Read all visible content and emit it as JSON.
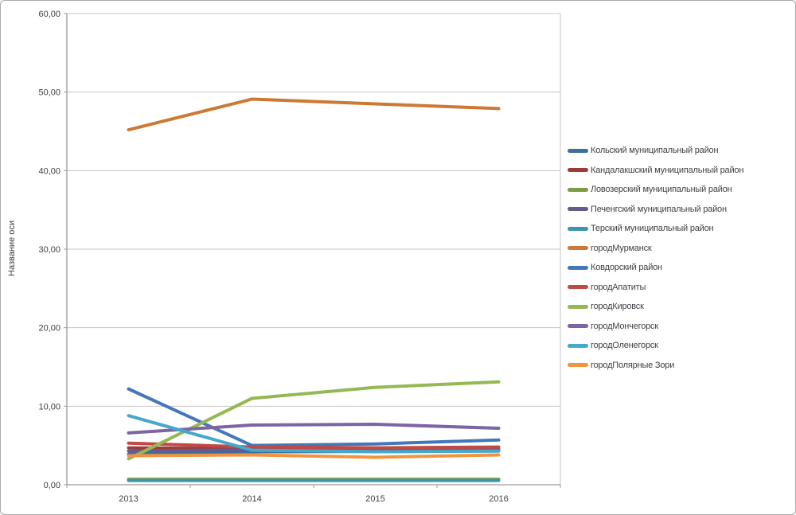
{
  "window": {
    "background_color": "#ffffff",
    "border_color": "#ababab"
  },
  "colors": {
    "gridline": "#c6c6c6",
    "axis": "#9b9b9b",
    "text": "#404040"
  },
  "chart_data": {
    "type": "line",
    "title": "",
    "xlabel": "",
    "ylabel": "Название оси",
    "x_labels": [
      "2013",
      "2014",
      "2015",
      "2016"
    ],
    "ylim": [
      0,
      60
    ],
    "y_tick_step": 10,
    "y_tick_labels": [
      "0,00",
      "10,00",
      "20,00",
      "30,00",
      "40,00",
      "50,00",
      "60,00"
    ],
    "grid": true,
    "legend_position": "right",
    "series": [
      {
        "name": "Кольский муниципальный район",
        "color": "#3c6e9e",
        "values": [
          3.9,
          4.2,
          4.25,
          4.3
        ]
      },
      {
        "name": "Кандалакшский муниципальный район",
        "color": "#9e3b38",
        "values": [
          4.7,
          4.6,
          4.5,
          4.5
        ]
      },
      {
        "name": "Ловозерский муниципальный район",
        "color": "#7d9a44",
        "values": [
          0.7,
          0.7,
          0.7,
          0.7
        ]
      },
      {
        "name": "Печенгский муниципальный район",
        "color": "#675a8e",
        "values": [
          4.3,
          4.45,
          4.5,
          4.5
        ]
      },
      {
        "name": "Терский муниципальный район",
        "color": "#3a96a8",
        "values": [
          0.55,
          0.55,
          0.55,
          0.55
        ]
      },
      {
        "name": "городМурманск",
        "color": "#cc7a33",
        "values": [
          45.2,
          49.1,
          48.5,
          47.9
        ]
      },
      {
        "name": "Ковдорский район",
        "color": "#4277bb",
        "values": [
          12.2,
          5.0,
          5.2,
          5.7
        ]
      },
      {
        "name": "городАпатиты",
        "color": "#c04a45",
        "values": [
          5.3,
          4.8,
          4.7,
          4.8
        ]
      },
      {
        "name": "городКировск",
        "color": "#94b954",
        "values": [
          3.3,
          11.0,
          12.4,
          13.1
        ]
      },
      {
        "name": "городМончегорск",
        "color": "#7c64a5",
        "values": [
          6.6,
          7.6,
          7.7,
          7.2
        ]
      },
      {
        "name": "городОленегорск",
        "color": "#45a9cc",
        "values": [
          8.8,
          4.4,
          4.2,
          4.3
        ]
      },
      {
        "name": "городПолярные Зори",
        "color": "#f1943f",
        "values": [
          3.7,
          3.8,
          3.5,
          3.8
        ]
      }
    ]
  }
}
